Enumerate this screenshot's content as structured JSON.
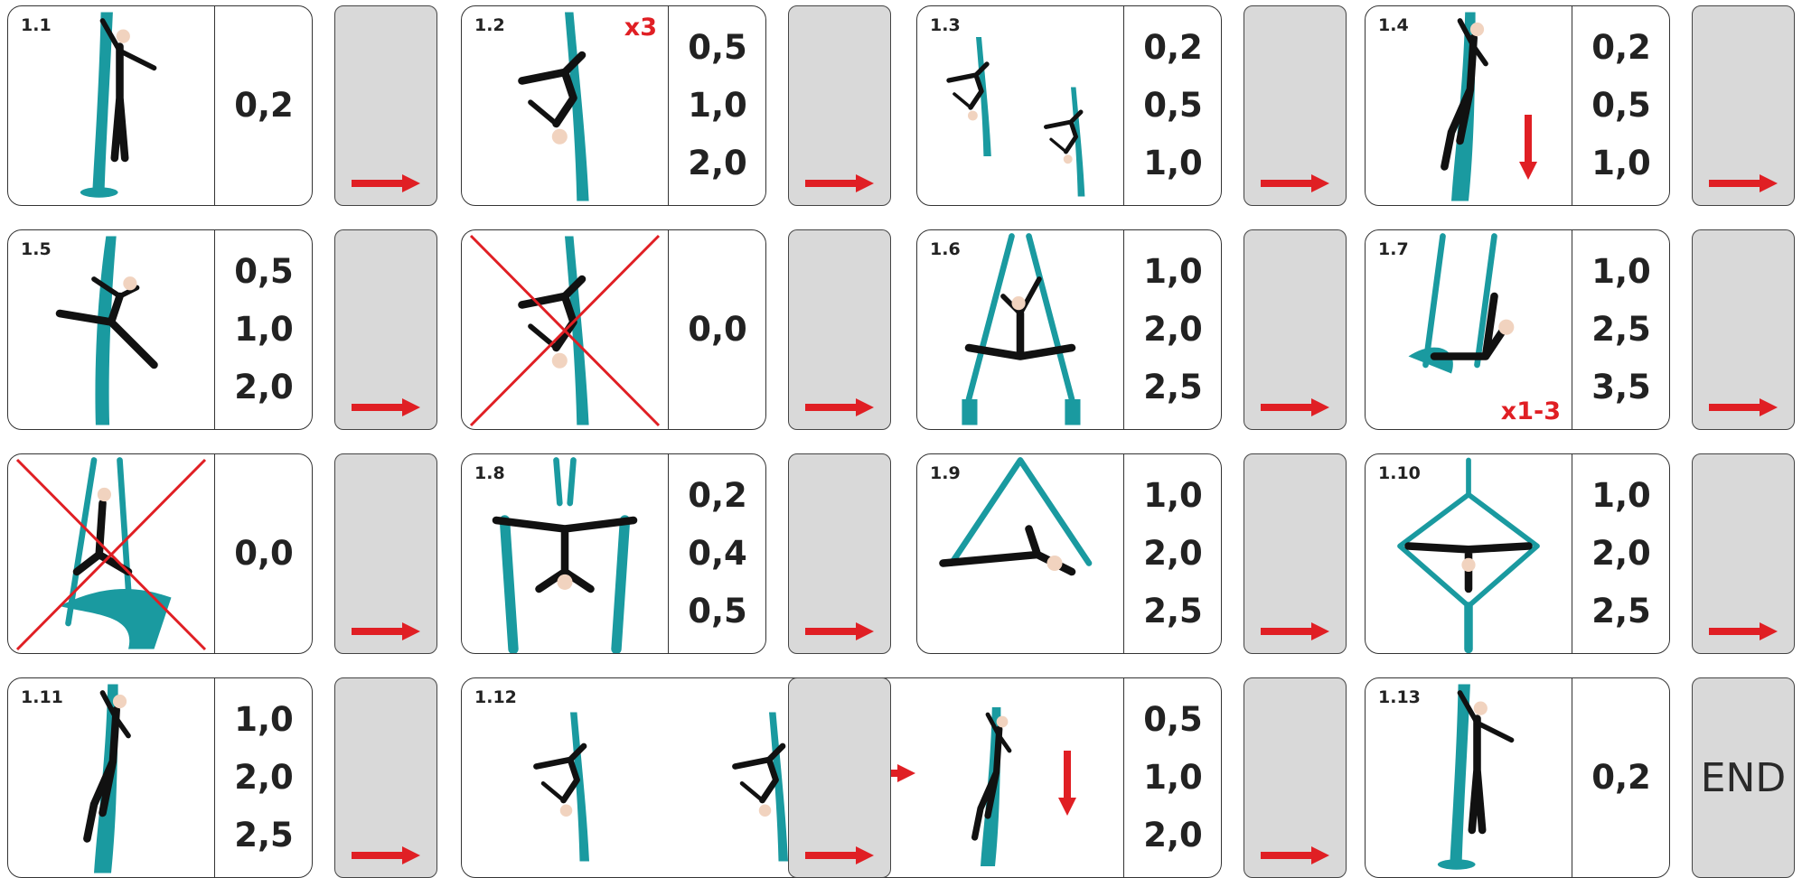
{
  "cards": [
    {
      "id": "1.1",
      "values": [
        "0,2"
      ]
    },
    {
      "id": "1.2",
      "values": [
        "0,5",
        "1,0",
        "2,0"
      ],
      "badge": "x3"
    },
    {
      "id": "1.3",
      "values": [
        "0,2",
        "0,5",
        "1,0"
      ]
    },
    {
      "id": "1.4",
      "values": [
        "0,2",
        "0,5",
        "1,0"
      ]
    },
    {
      "id": "1.5",
      "values": [
        "0,5",
        "1,0",
        "2,0"
      ]
    },
    {
      "id": "",
      "values": [
        "0,0"
      ],
      "crossed": true
    },
    {
      "id": "1.6",
      "values": [
        "1,0",
        "2,0",
        "2,5"
      ]
    },
    {
      "id": "1.7",
      "values": [
        "1,0",
        "2,5",
        "3,5"
      ],
      "badge": "x1-3"
    },
    {
      "id": "",
      "values": [
        "0,0"
      ],
      "crossed": true
    },
    {
      "id": "1.8",
      "values": [
        "0,2",
        "0,4",
        "0,5"
      ]
    },
    {
      "id": "1.9",
      "values": [
        "1,0",
        "2,0",
        "2,5"
      ]
    },
    {
      "id": "1.10",
      "values": [
        "1,0",
        "2,0",
        "2,5"
      ]
    },
    {
      "id": "1.11",
      "values": [
        "1,0",
        "2,0",
        "2,5"
      ]
    },
    {
      "id": "1.12",
      "values": [
        "0,5",
        "1,0",
        "2,0"
      ]
    },
    {
      "id": "1.13",
      "values": [
        "0,2"
      ]
    }
  ],
  "end_label": "END",
  "colors": {
    "silk": "#1a9aa0",
    "figure": "#111111",
    "skin": "#f1d3bf",
    "arrow": "#e01f24",
    "panel": "#d9d9d9"
  },
  "icons": {
    "next": "right-arrow-icon",
    "down": "down-arrow-icon",
    "cross": "cross-out-icon"
  }
}
